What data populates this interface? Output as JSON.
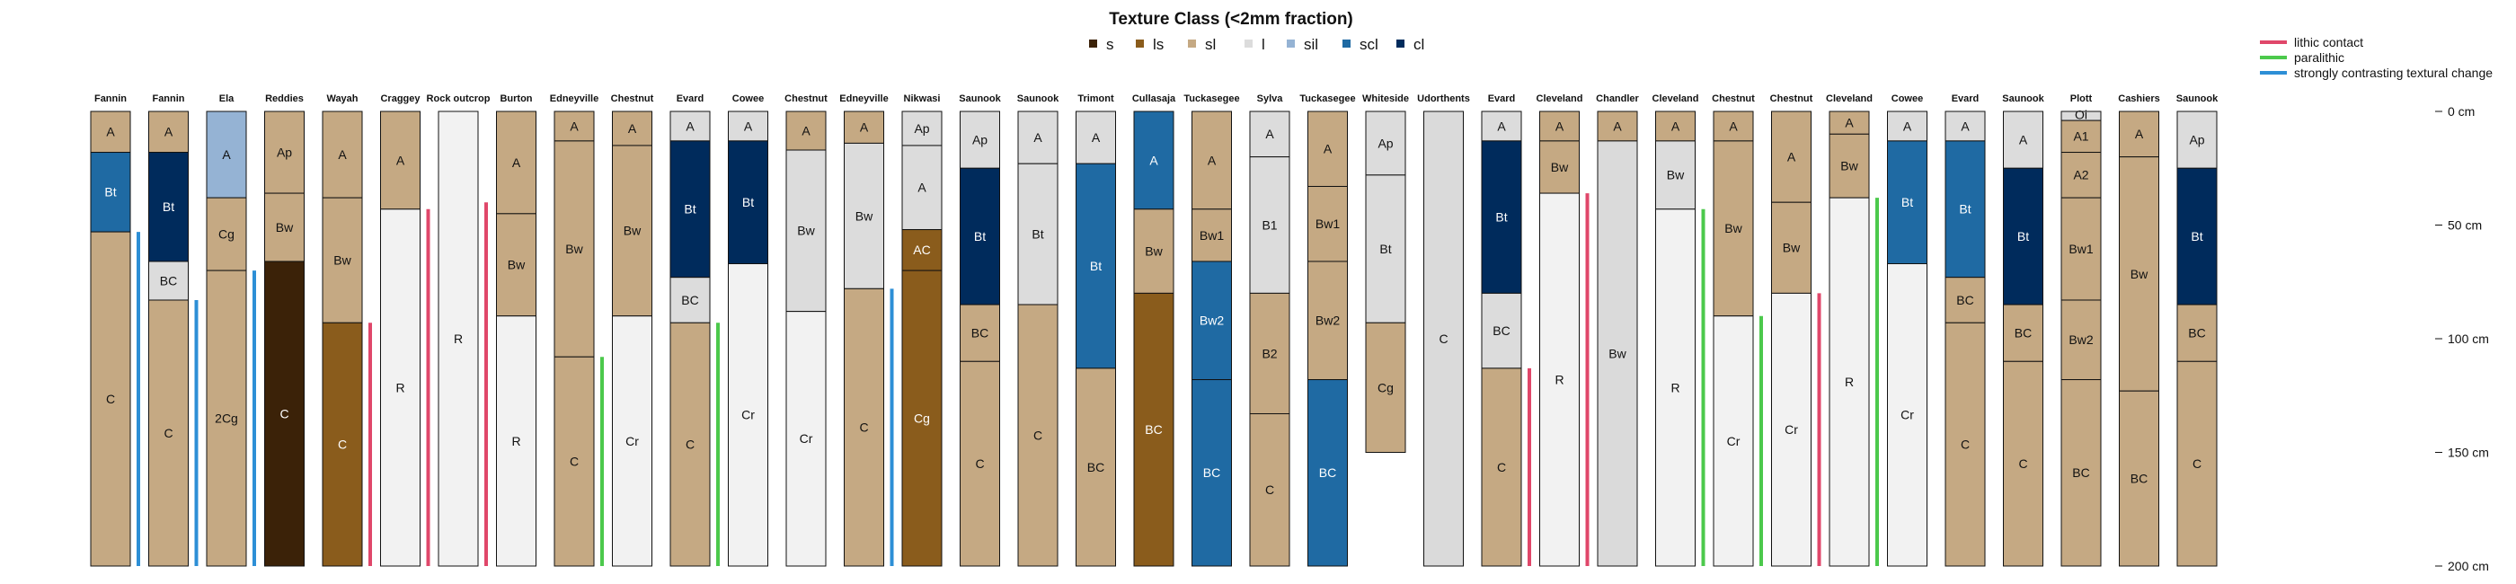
{
  "chart_data": {
    "type": "soil-profile-sketch",
    "title": "Texture Class (<2mm fraction)",
    "texture_legend": [
      {
        "code": "s",
        "color": "#3b2208"
      },
      {
        "code": "ls",
        "color": "#8a5c1c"
      },
      {
        "code": "sl",
        "color": "#c5a983"
      },
      {
        "code": "l",
        "color": "#dcdcdc"
      },
      {
        "code": "sil",
        "color": "#95b3d4"
      },
      {
        "code": "scl",
        "color": "#1f6aa3"
      },
      {
        "code": "cl",
        "color": "#002b5c"
      }
    ],
    "extra_colors": {
      "R": "#f2f2f2",
      "C_gray": "#dadada"
    },
    "side_legend": [
      {
        "label": "lithic contact",
        "color": "#e0476a"
      },
      {
        "label": "paralithic",
        "color": "#4cc94c"
      },
      {
        "label": "strongly contrasting textural change",
        "color": "#2d8fd6"
      }
    ],
    "depth_axis": {
      "unit": "cm",
      "ticks": [
        0,
        50,
        100,
        150,
        200
      ],
      "labels": [
        "0 cm",
        "50 cm",
        "100 cm",
        "150 cm",
        "200 cm"
      ],
      "ylim": [
        0,
        200
      ]
    },
    "profiles": [
      {
        "name": "Fannin",
        "marker": "strongly contrasting textural change",
        "horizons": [
          {
            "name": "A",
            "top": 0,
            "bottom": 18,
            "tex": "sl"
          },
          {
            "name": "Bt",
            "top": 18,
            "bottom": 53,
            "tex": "scl"
          },
          {
            "name": "C",
            "top": 53,
            "bottom": 200,
            "tex": "sl"
          }
        ]
      },
      {
        "name": "Fannin",
        "marker": "strongly contrasting textural change",
        "horizons": [
          {
            "name": "A",
            "top": 0,
            "bottom": 18,
            "tex": "sl"
          },
          {
            "name": "Bt",
            "top": 18,
            "bottom": 66,
            "tex": "cl"
          },
          {
            "name": "BC",
            "top": 66,
            "bottom": 83,
            "tex": "l"
          },
          {
            "name": "C",
            "top": 83,
            "bottom": 200,
            "tex": "sl"
          }
        ]
      },
      {
        "name": "Ela",
        "marker": "strongly contrasting textural change",
        "horizons": [
          {
            "name": "A",
            "top": 0,
            "bottom": 38,
            "tex": "sil"
          },
          {
            "name": "Cg",
            "top": 38,
            "bottom": 70,
            "tex": "sl"
          },
          {
            "name": "2Cg",
            "top": 70,
            "bottom": 200,
            "tex": "sl"
          }
        ]
      },
      {
        "name": "Reddies",
        "marker": null,
        "horizons": [
          {
            "name": "Ap",
            "top": 0,
            "bottom": 36,
            "tex": "sl"
          },
          {
            "name": "Bw",
            "top": 36,
            "bottom": 66,
            "tex": "sl"
          },
          {
            "name": "C",
            "top": 66,
            "bottom": 200,
            "tex": "s"
          }
        ]
      },
      {
        "name": "Wayah",
        "marker": "lithic contact",
        "horizons": [
          {
            "name": "A",
            "top": 0,
            "bottom": 38,
            "tex": "sl"
          },
          {
            "name": "Bw",
            "top": 38,
            "bottom": 93,
            "tex": "sl"
          },
          {
            "name": "C",
            "top": 93,
            "bottom": 200,
            "tex": "ls"
          }
        ]
      },
      {
        "name": "Craggey",
        "marker": "lithic contact",
        "horizons": [
          {
            "name": "A",
            "top": 0,
            "bottom": 43,
            "tex": "sl"
          },
          {
            "name": "R",
            "top": 43,
            "bottom": 200,
            "tex": "R"
          }
        ]
      },
      {
        "name": "Rock outcrop",
        "marker": "lithic contact",
        "horizons": [
          {
            "name": "R",
            "top": 0,
            "bottom": 200,
            "tex": "R"
          }
        ]
      },
      {
        "name": "Burton",
        "marker": null,
        "horizons": [
          {
            "name": "A",
            "top": 0,
            "bottom": 45,
            "tex": "sl"
          },
          {
            "name": "Bw",
            "top": 45,
            "bottom": 90,
            "tex": "sl"
          },
          {
            "name": "R",
            "top": 90,
            "bottom": 200,
            "tex": "R"
          }
        ]
      },
      {
        "name": "Edneyville",
        "marker": "paralithic",
        "horizons": [
          {
            "name": "A",
            "top": 0,
            "bottom": 13,
            "tex": "sl"
          },
          {
            "name": "Bw",
            "top": 13,
            "bottom": 108,
            "tex": "sl"
          },
          {
            "name": "C",
            "top": 108,
            "bottom": 200,
            "tex": "sl"
          }
        ]
      },
      {
        "name": "Chestnut",
        "marker": null,
        "horizons": [
          {
            "name": "A",
            "top": 0,
            "bottom": 15,
            "tex": "sl"
          },
          {
            "name": "Bw",
            "top": 15,
            "bottom": 90,
            "tex": "sl"
          },
          {
            "name": "Cr",
            "top": 90,
            "bottom": 200,
            "tex": "R"
          }
        ]
      },
      {
        "name": "Evard",
        "marker": "paralithic",
        "horizons": [
          {
            "name": "A",
            "top": 0,
            "bottom": 13,
            "tex": "l"
          },
          {
            "name": "Bt",
            "top": 13,
            "bottom": 73,
            "tex": "cl"
          },
          {
            "name": "BC",
            "top": 73,
            "bottom": 93,
            "tex": "l"
          },
          {
            "name": "C",
            "top": 93,
            "bottom": 200,
            "tex": "sl"
          }
        ]
      },
      {
        "name": "Cowee",
        "marker": null,
        "horizons": [
          {
            "name": "A",
            "top": 0,
            "bottom": 13,
            "tex": "l"
          },
          {
            "name": "Bt",
            "top": 13,
            "bottom": 67,
            "tex": "cl"
          },
          {
            "name": "Cr",
            "top": 67,
            "bottom": 200,
            "tex": "R"
          }
        ]
      },
      {
        "name": "Chestnut",
        "marker": null,
        "horizons": [
          {
            "name": "A",
            "top": 0,
            "bottom": 17,
            "tex": "sl"
          },
          {
            "name": "Bw",
            "top": 17,
            "bottom": 88,
            "tex": "l"
          },
          {
            "name": "Cr",
            "top": 88,
            "bottom": 200,
            "tex": "R"
          }
        ]
      },
      {
        "name": "Edneyville",
        "marker": "strongly contrasting textural change",
        "horizons": [
          {
            "name": "A",
            "top": 0,
            "bottom": 14,
            "tex": "sl"
          },
          {
            "name": "Bw",
            "top": 14,
            "bottom": 78,
            "tex": "l"
          },
          {
            "name": "C",
            "top": 78,
            "bottom": 200,
            "tex": "sl"
          }
        ]
      },
      {
        "name": "Nikwasi",
        "marker": null,
        "horizons": [
          {
            "name": "Ap",
            "top": 0,
            "bottom": 15,
            "tex": "l"
          },
          {
            "name": "A",
            "top": 15,
            "bottom": 52,
            "tex": "l"
          },
          {
            "name": "AC",
            "top": 52,
            "bottom": 70,
            "tex": "ls"
          },
          {
            "name": "Cg",
            "top": 70,
            "bottom": 200,
            "tex": "ls"
          }
        ]
      },
      {
        "name": "Saunook",
        "marker": null,
        "horizons": [
          {
            "name": "Ap",
            "top": 0,
            "bottom": 25,
            "tex": "l"
          },
          {
            "name": "Bt",
            "top": 25,
            "bottom": 85,
            "tex": "cl"
          },
          {
            "name": "BC",
            "top": 85,
            "bottom": 110,
            "tex": "sl"
          },
          {
            "name": "C",
            "top": 110,
            "bottom": 200,
            "tex": "sl"
          }
        ]
      },
      {
        "name": "Saunook",
        "marker": null,
        "horizons": [
          {
            "name": "A",
            "top": 0,
            "bottom": 23,
            "tex": "l"
          },
          {
            "name": "Bt",
            "top": 23,
            "bottom": 85,
            "tex": "l"
          },
          {
            "name": "C",
            "top": 85,
            "bottom": 200,
            "tex": "sl"
          }
        ]
      },
      {
        "name": "Trimont",
        "marker": null,
        "horizons": [
          {
            "name": "A",
            "top": 0,
            "bottom": 23,
            "tex": "l"
          },
          {
            "name": "Bt",
            "top": 23,
            "bottom": 113,
            "tex": "scl"
          },
          {
            "name": "BC",
            "top": 113,
            "bottom": 200,
            "tex": "sl"
          }
        ]
      },
      {
        "name": "Cullasaja",
        "marker": null,
        "horizons": [
          {
            "name": "A",
            "top": 0,
            "bottom": 43,
            "tex": "scl"
          },
          {
            "name": "Bw",
            "top": 43,
            "bottom": 80,
            "tex": "sl"
          },
          {
            "name": "BC",
            "top": 80,
            "bottom": 200,
            "tex": "ls"
          }
        ]
      },
      {
        "name": "Tuckasegee",
        "marker": null,
        "horizons": [
          {
            "name": "A",
            "top": 0,
            "bottom": 43,
            "tex": "sl"
          },
          {
            "name": "Bw1",
            "top": 43,
            "bottom": 66,
            "tex": "sl"
          },
          {
            "name": "Bw2",
            "top": 66,
            "bottom": 118,
            "tex": "scl"
          },
          {
            "name": "BC",
            "top": 118,
            "bottom": 200,
            "tex": "scl"
          }
        ]
      },
      {
        "name": "Sylva",
        "marker": null,
        "horizons": [
          {
            "name": "A",
            "top": 0,
            "bottom": 20,
            "tex": "l"
          },
          {
            "name": "B1",
            "top": 20,
            "bottom": 80,
            "tex": "l"
          },
          {
            "name": "B2",
            "top": 80,
            "bottom": 133,
            "tex": "sl"
          },
          {
            "name": "C",
            "top": 133,
            "bottom": 200,
            "tex": "sl"
          }
        ]
      },
      {
        "name": "Tuckasegee",
        "marker": null,
        "horizons": [
          {
            "name": "A",
            "top": 0,
            "bottom": 33,
            "tex": "sl"
          },
          {
            "name": "Bw1",
            "top": 33,
            "bottom": 66,
            "tex": "sl"
          },
          {
            "name": "Bw2",
            "top": 66,
            "bottom": 118,
            "tex": "sl"
          },
          {
            "name": "BC",
            "top": 118,
            "bottom": 200,
            "tex": "scl"
          }
        ]
      },
      {
        "name": "Whiteside",
        "marker": null,
        "horizons": [
          {
            "name": "Ap",
            "top": 0,
            "bottom": 28,
            "tex": "l"
          },
          {
            "name": "Bt",
            "top": 28,
            "bottom": 93,
            "tex": "l"
          },
          {
            "name": "Cg",
            "top": 93,
            "bottom": 150,
            "tex": "sl"
          }
        ]
      },
      {
        "name": "Udorthents",
        "marker": null,
        "horizons": [
          {
            "name": "C",
            "top": 0,
            "bottom": 200,
            "tex": "C_gray"
          }
        ]
      },
      {
        "name": "Evard",
        "marker": "lithic contact",
        "horizons": [
          {
            "name": "A",
            "top": 0,
            "bottom": 13,
            "tex": "l"
          },
          {
            "name": "Bt",
            "top": 13,
            "bottom": 80,
            "tex": "cl"
          },
          {
            "name": "BC",
            "top": 80,
            "bottom": 113,
            "tex": "l"
          },
          {
            "name": "C",
            "top": 113,
            "bottom": 200,
            "tex": "sl"
          }
        ]
      },
      {
        "name": "Cleveland",
        "marker": "lithic contact",
        "horizons": [
          {
            "name": "A",
            "top": 0,
            "bottom": 13,
            "tex": "sl"
          },
          {
            "name": "Bw",
            "top": 13,
            "bottom": 36,
            "tex": "sl"
          },
          {
            "name": "R",
            "top": 36,
            "bottom": 200,
            "tex": "R"
          }
        ]
      },
      {
        "name": "Chandler",
        "marker": null,
        "horizons": [
          {
            "name": "A",
            "top": 0,
            "bottom": 13,
            "tex": "sl"
          },
          {
            "name": "Bw",
            "top": 13,
            "bottom": 200,
            "tex": "C_gray"
          }
        ]
      },
      {
        "name": "Cleveland",
        "marker": "paralithic",
        "horizons": [
          {
            "name": "A",
            "top": 0,
            "bottom": 13,
            "tex": "sl"
          },
          {
            "name": "Bw",
            "top": 13,
            "bottom": 43,
            "tex": "l"
          },
          {
            "name": "R",
            "top": 43,
            "bottom": 200,
            "tex": "R"
          }
        ]
      },
      {
        "name": "Chestnut",
        "marker": "paralithic",
        "horizons": [
          {
            "name": "A",
            "top": 0,
            "bottom": 13,
            "tex": "sl"
          },
          {
            "name": "Bw",
            "top": 13,
            "bottom": 90,
            "tex": "sl"
          },
          {
            "name": "Cr",
            "top": 90,
            "bottom": 200,
            "tex": "R"
          }
        ]
      },
      {
        "name": "Chestnut",
        "marker": "lithic contact",
        "horizons": [
          {
            "name": "A",
            "top": 0,
            "bottom": 40,
            "tex": "sl"
          },
          {
            "name": "Bw",
            "top": 40,
            "bottom": 80,
            "tex": "sl"
          },
          {
            "name": "Cr",
            "top": 80,
            "bottom": 200,
            "tex": "R"
          }
        ]
      },
      {
        "name": "Cleveland",
        "marker": "paralithic",
        "horizons": [
          {
            "name": "A",
            "top": 0,
            "bottom": 10,
            "tex": "sl"
          },
          {
            "name": "Bw",
            "top": 10,
            "bottom": 38,
            "tex": "sl"
          },
          {
            "name": "R",
            "top": 38,
            "bottom": 200,
            "tex": "R"
          }
        ]
      },
      {
        "name": "Cowee",
        "marker": null,
        "horizons": [
          {
            "name": "A",
            "top": 0,
            "bottom": 13,
            "tex": "l"
          },
          {
            "name": "Bt",
            "top": 13,
            "bottom": 67,
            "tex": "scl"
          },
          {
            "name": "Cr",
            "top": 67,
            "bottom": 200,
            "tex": "R"
          }
        ]
      },
      {
        "name": "Evard",
        "marker": null,
        "horizons": [
          {
            "name": "A",
            "top": 0,
            "bottom": 13,
            "tex": "l"
          },
          {
            "name": "Bt",
            "top": 13,
            "bottom": 73,
            "tex": "scl"
          },
          {
            "name": "BC",
            "top": 73,
            "bottom": 93,
            "tex": "sl"
          },
          {
            "name": "C",
            "top": 93,
            "bottom": 200,
            "tex": "sl"
          }
        ]
      },
      {
        "name": "Saunook",
        "marker": null,
        "horizons": [
          {
            "name": "A",
            "top": 0,
            "bottom": 25,
            "tex": "l"
          },
          {
            "name": "Bt",
            "top": 25,
            "bottom": 85,
            "tex": "cl"
          },
          {
            "name": "BC",
            "top": 85,
            "bottom": 110,
            "tex": "sl"
          },
          {
            "name": "C",
            "top": 110,
            "bottom": 200,
            "tex": "sl"
          }
        ]
      },
      {
        "name": "Plott",
        "marker": null,
        "horizons": [
          {
            "name": "Oi",
            "top": 0,
            "bottom": 4,
            "tex": "l"
          },
          {
            "name": "A1",
            "top": 4,
            "bottom": 18,
            "tex": "sl"
          },
          {
            "name": "A2",
            "top": 18,
            "bottom": 38,
            "tex": "sl"
          },
          {
            "name": "Bw1",
            "top": 38,
            "bottom": 83,
            "tex": "sl"
          },
          {
            "name": "Bw2",
            "top": 83,
            "bottom": 118,
            "tex": "sl"
          },
          {
            "name": "BC",
            "top": 118,
            "bottom": 200,
            "tex": "sl"
          }
        ]
      },
      {
        "name": "Cashiers",
        "marker": null,
        "horizons": [
          {
            "name": "A",
            "top": 0,
            "bottom": 20,
            "tex": "sl"
          },
          {
            "name": "Bw",
            "top": 20,
            "bottom": 123,
            "tex": "sl"
          },
          {
            "name": "BC",
            "top": 123,
            "bottom": 200,
            "tex": "sl"
          }
        ]
      },
      {
        "name": "Saunook",
        "marker": null,
        "horizons": [
          {
            "name": "Ap",
            "top": 0,
            "bottom": 25,
            "tex": "l"
          },
          {
            "name": "Bt",
            "top": 25,
            "bottom": 85,
            "tex": "cl"
          },
          {
            "name": "BC",
            "top": 85,
            "bottom": 110,
            "tex": "sl"
          },
          {
            "name": "C",
            "top": 110,
            "bottom": 200,
            "tex": "sl"
          }
        ]
      }
    ]
  }
}
